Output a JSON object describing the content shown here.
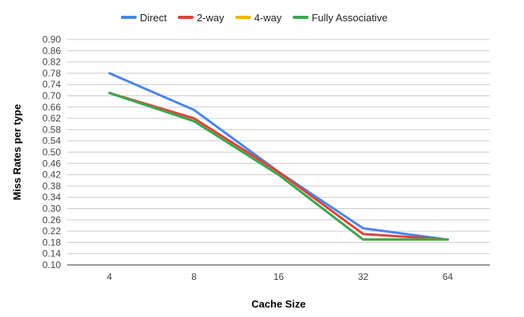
{
  "chart_data": {
    "type": "line",
    "title": "",
    "xlabel": "Cache Size",
    "ylabel": "Miss Rates per type",
    "categories": [
      "4",
      "8",
      "16",
      "32",
      "64"
    ],
    "ylim": [
      0.1,
      0.9
    ],
    "y_ticks": [
      "0.90",
      "0.86",
      "0.82",
      "0.78",
      "0.74",
      "0.70",
      "0.66",
      "0.62",
      "0.58",
      "0.54",
      "0.50",
      "0.46",
      "0.42",
      "0.38",
      "0.34",
      "0.30",
      "0.26",
      "0.22",
      "0.18",
      "0.14",
      "0.10"
    ],
    "grid": true,
    "legend_position": "top",
    "series": [
      {
        "name": "Direct",
        "color": "#4a86e8",
        "values": [
          0.78,
          0.65,
          0.43,
          0.23,
          0.19
        ]
      },
      {
        "name": "2-way",
        "color": "#db4437",
        "values": [
          0.71,
          0.62,
          0.43,
          0.21,
          0.19
        ]
      },
      {
        "name": "4-way",
        "color": "#f4b400",
        "values": [
          0.71,
          0.61,
          0.42,
          0.19,
          0.19
        ]
      },
      {
        "name": "Fully Associative",
        "color": "#3aa757",
        "values": [
          0.71,
          0.61,
          0.42,
          0.19,
          0.19
        ]
      }
    ]
  }
}
